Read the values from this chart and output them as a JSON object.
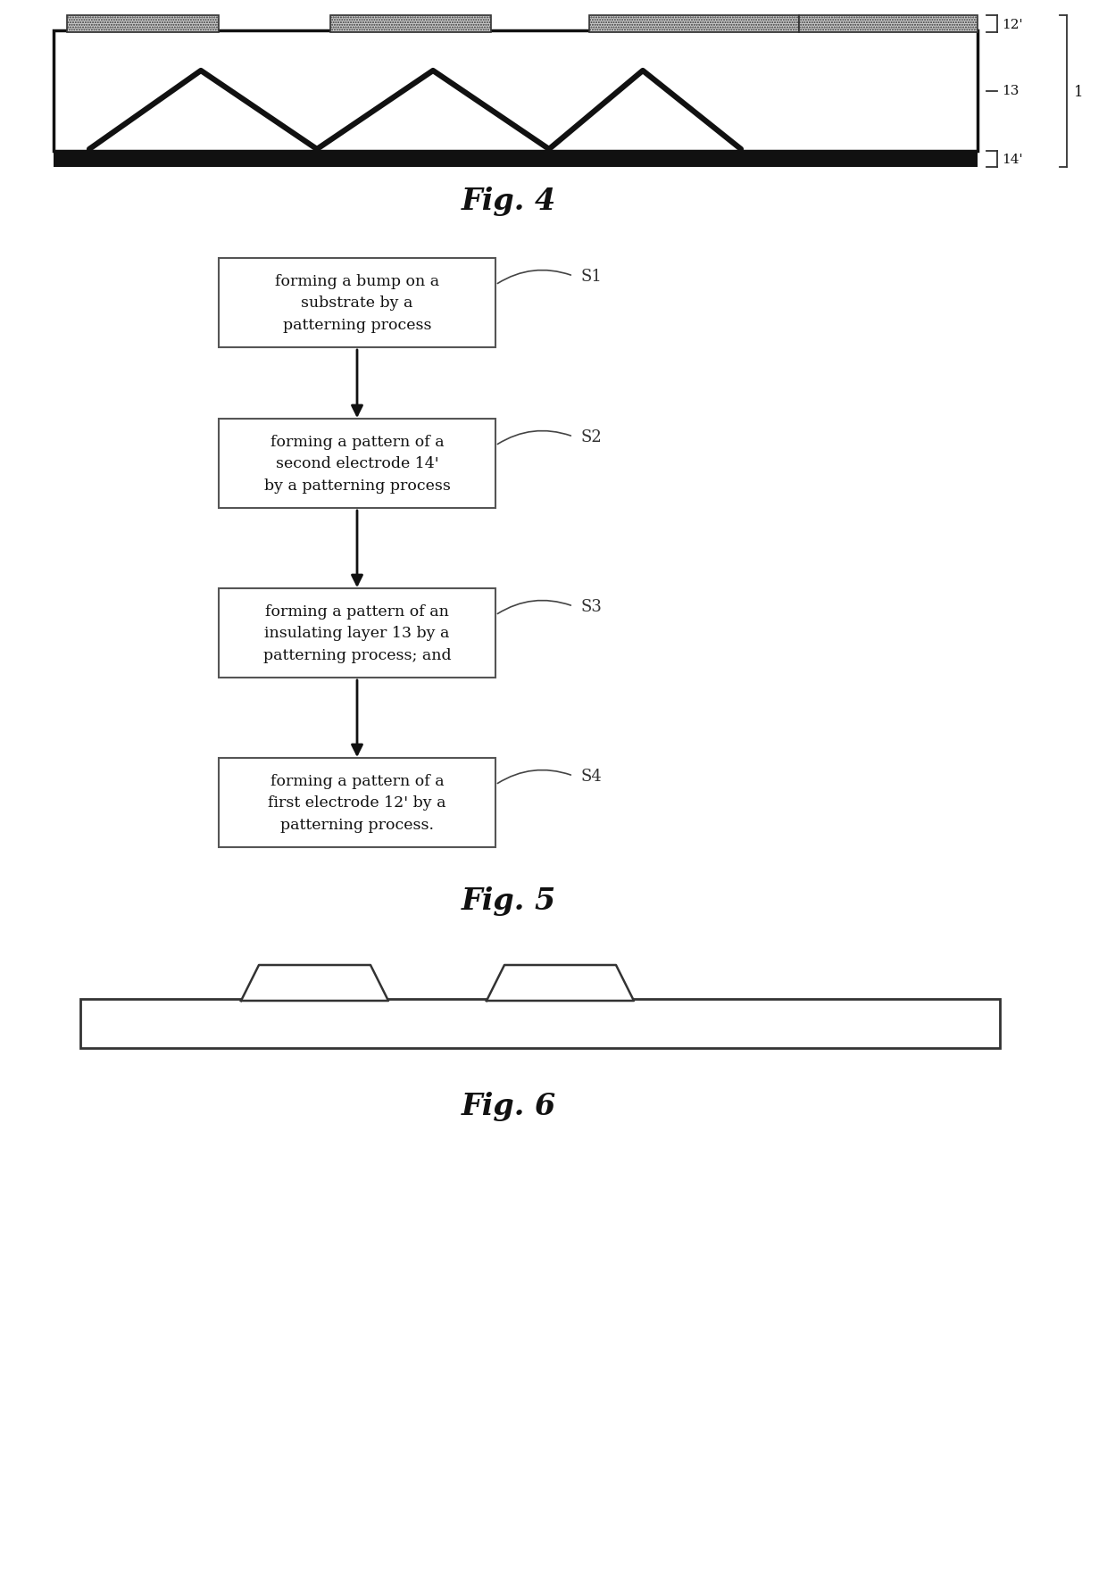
{
  "fig_width": 12.4,
  "fig_height": 17.81,
  "bg_color": "#ffffff",
  "fig4_label": "Fig. 4",
  "fig5_label": "Fig. 5",
  "fig6_label": "Fig. 6",
  "flow_steps": [
    "forming a bump on a\nsubstrate by a\npatterning process",
    "forming a pattern of a\nsecond electrode 14'\nby a patterning process",
    "forming a pattern of an\ninsulating layer 13 by a\npatterning process; and",
    "forming a pattern of a\nfirst electrode 12' by a\npatterning process."
  ],
  "flow_labels": [
    "S1",
    "S2",
    "S3",
    "S4"
  ],
  "text_color": "#111111",
  "line_color": "#222222",
  "label_color": "#444444",
  "hatch_color": "#888888"
}
